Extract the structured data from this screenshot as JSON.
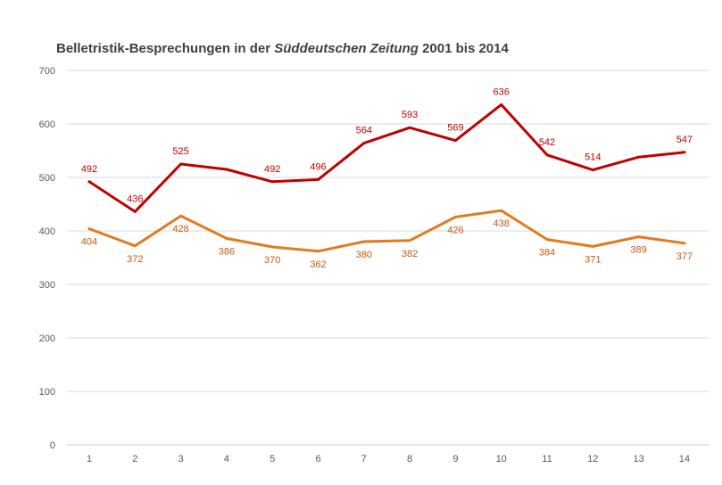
{
  "chart_data": {
    "type": "line",
    "title": {
      "part1": "Belletristik-Besprechungen in der ",
      "part2_italic": "Süddeutschen Zeitung",
      "part3": " 2001 bis 2014"
    },
    "x": [
      "1",
      "2",
      "3",
      "4",
      "5",
      "6",
      "7",
      "8",
      "9",
      "10",
      "11",
      "12",
      "13",
      "14"
    ],
    "ylim": [
      0,
      700
    ],
    "yticks": [
      "0",
      "100",
      "200",
      "300",
      "400",
      "500",
      "600",
      "700"
    ],
    "grid": true,
    "series": [
      {
        "color": "#c00000",
        "values": [
          492,
          436,
          525,
          515,
          492,
          496,
          564,
          593,
          569,
          636,
          542,
          514,
          538,
          547
        ],
        "labels": [
          "492",
          "436",
          "525",
          "",
          "492",
          "496",
          "564",
          "593",
          "569",
          "636",
          "542",
          "514",
          "",
          "547"
        ]
      },
      {
        "color": "#e07b20",
        "values": [
          404,
          372,
          428,
          386,
          370,
          362,
          380,
          382,
          426,
          438,
          384,
          371,
          389,
          377
        ],
        "labels": [
          "404",
          "372",
          "428",
          "386",
          "370",
          "362",
          "380",
          "382",
          "426",
          "438",
          "384",
          "371",
          "389",
          "377"
        ]
      }
    ]
  }
}
